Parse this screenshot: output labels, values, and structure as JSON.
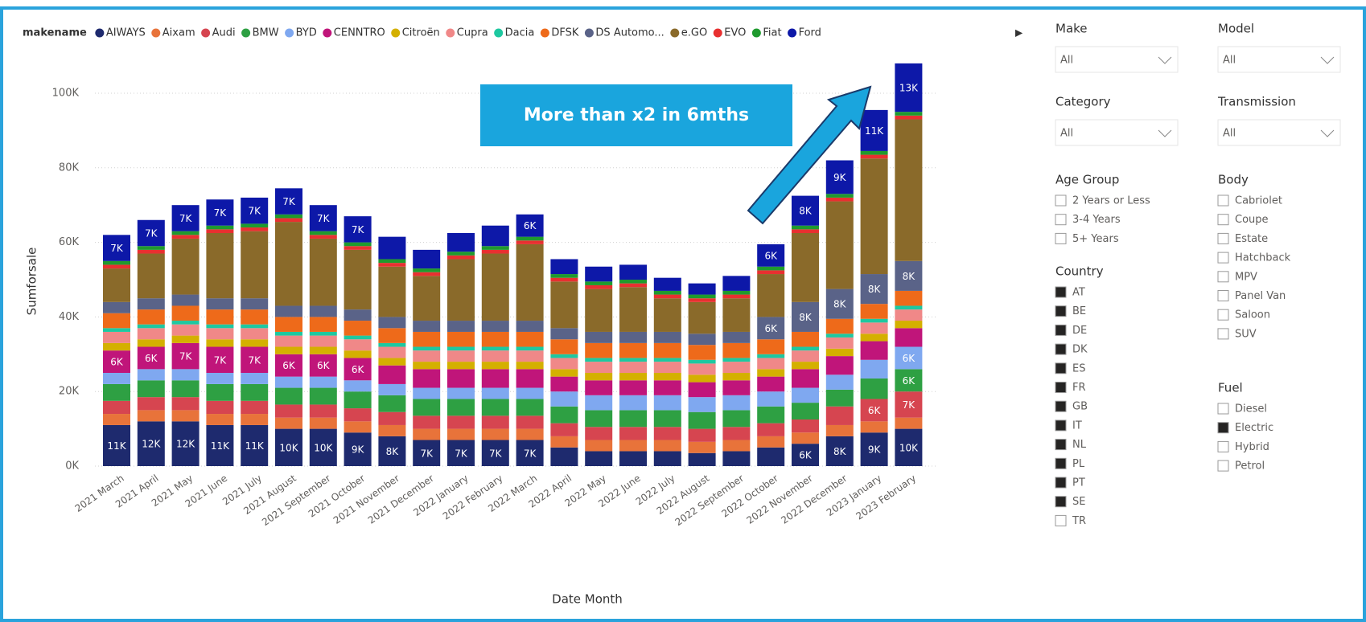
{
  "chart_data": {
    "type": "stacked_bar",
    "legend_title": "makename",
    "x_label": "Date Month",
    "y_label": "Sumforsale",
    "annotation": "More than x2 in 6mths",
    "categories": [
      "2021 March",
      "2021 April",
      "2021 May",
      "2021 June",
      "2021 July",
      "2021 August",
      "2021 September",
      "2021 October",
      "2021 November",
      "2021 December",
      "2022 January",
      "2022 February",
      "2022 March",
      "2022 April",
      "2022 May",
      "2022 June",
      "2022 July",
      "2022 August",
      "2022 September",
      "2022 October",
      "2022 November",
      "2022 December",
      "2023 January",
      "2023 February"
    ],
    "ylim": [
      0,
      110000
    ],
    "yticks": [
      {
        "value": 0,
        "label": "0K"
      },
      {
        "value": 20000,
        "label": "20K"
      },
      {
        "value": 40000,
        "label": "40K"
      },
      {
        "value": 60000,
        "label": "60K"
      },
      {
        "value": 80000,
        "label": "80K"
      },
      {
        "value": 100000,
        "label": "100K"
      }
    ],
    "grid": true,
    "series": [
      {
        "name": "AIWAYS",
        "color": "#1e2a6e",
        "values": [
          11000,
          12000,
          12000,
          11000,
          11000,
          10000,
          10000,
          9000,
          8000,
          7000,
          7000,
          7000,
          7000,
          5000,
          4000,
          4000,
          4000,
          3500,
          4000,
          5000,
          6000,
          8000,
          9000,
          10000
        ],
        "value_labels": [
          "11K",
          "12K",
          "12K",
          "11K",
          "11K",
          "10K",
          "10K",
          "9K",
          "8K",
          "7K",
          "7K",
          "7K",
          "7K",
          null,
          null,
          null,
          null,
          null,
          null,
          null,
          "6K",
          "8K",
          "9K",
          "10K"
        ]
      },
      {
        "name": "Aixam",
        "color": "#e8733a",
        "values": [
          3000,
          3000,
          3000,
          3000,
          3000,
          3000,
          3000,
          3000,
          3000,
          3000,
          3000,
          3000,
          3000,
          3000,
          3000,
          3000,
          3000,
          3000,
          3000,
          3000,
          3000,
          3000,
          3000,
          3000
        ]
      },
      {
        "name": "Audi",
        "color": "#d64550",
        "values": [
          3500,
          3500,
          3500,
          3500,
          3500,
          3500,
          3500,
          3500,
          3500,
          3500,
          3500,
          3500,
          3500,
          3500,
          3500,
          3500,
          3500,
          3500,
          3500,
          3500,
          3500,
          5000,
          6000,
          7000
        ],
        "value_labels": [
          null,
          null,
          null,
          null,
          null,
          null,
          null,
          null,
          null,
          null,
          null,
          null,
          null,
          null,
          null,
          null,
          null,
          null,
          null,
          null,
          null,
          null,
          "6K",
          "7K"
        ]
      },
      {
        "name": "BMW",
        "color": "#2ea043",
        "values": [
          4500,
          4500,
          4500,
          4500,
          4500,
          4500,
          4500,
          4500,
          4500,
          4500,
          4500,
          4500,
          4500,
          4500,
          4500,
          4500,
          4500,
          4500,
          4500,
          4500,
          4500,
          4500,
          5500,
          6000
        ],
        "value_labels": [
          null,
          null,
          null,
          null,
          null,
          null,
          null,
          null,
          null,
          null,
          null,
          null,
          null,
          null,
          null,
          null,
          null,
          null,
          null,
          null,
          null,
          null,
          null,
          "6K"
        ]
      },
      {
        "name": "BYD",
        "color": "#7fa8f0",
        "values": [
          3000,
          3000,
          3000,
          3000,
          3000,
          3000,
          3000,
          3000,
          3000,
          3000,
          3000,
          3000,
          3000,
          4000,
          4000,
          4000,
          4000,
          4000,
          4000,
          4000,
          4000,
          4000,
          5000,
          6000
        ],
        "value_labels": [
          null,
          null,
          null,
          null,
          null,
          null,
          null,
          null,
          null,
          null,
          null,
          null,
          null,
          null,
          null,
          null,
          null,
          null,
          null,
          null,
          null,
          null,
          null,
          "6K"
        ]
      },
      {
        "name": "CENNTRO",
        "color": "#c0157a",
        "values": [
          6000,
          6000,
          7000,
          7000,
          7000,
          6000,
          6000,
          6000,
          5000,
          5000,
          5000,
          5000,
          5000,
          4000,
          4000,
          4000,
          4000,
          4000,
          4000,
          4000,
          5000,
          5000,
          5000,
          5000
        ],
        "value_labels": [
          "6K",
          "6K",
          "7K",
          "7K",
          "7K",
          "6K",
          "6K",
          "6K",
          null,
          null,
          null,
          null,
          null,
          null,
          null,
          null,
          null,
          null,
          null,
          null,
          null,
          null,
          null,
          null
        ]
      },
      {
        "name": "Citroën",
        "color": "#d4b000",
        "values": [
          2000,
          2000,
          2000,
          2000,
          2000,
          2000,
          2000,
          2000,
          2000,
          2000,
          2000,
          2000,
          2000,
          2000,
          2000,
          2000,
          2000,
          2000,
          2000,
          2000,
          2000,
          2000,
          2000,
          2000
        ]
      },
      {
        "name": "Cupra",
        "color": "#f08888",
        "values": [
          3000,
          3000,
          3000,
          3000,
          3000,
          3000,
          3000,
          3000,
          3000,
          3000,
          3000,
          3000,
          3000,
          3000,
          3000,
          3000,
          3000,
          3000,
          3000,
          3000,
          3000,
          3000,
          3000,
          3000
        ]
      },
      {
        "name": "Dacia",
        "color": "#1ec8a0",
        "values": [
          1000,
          1000,
          1000,
          1000,
          1000,
          1000,
          1000,
          1000,
          1000,
          1000,
          1000,
          1000,
          1000,
          1000,
          1000,
          1000,
          1000,
          1000,
          1000,
          1000,
          1000,
          1000,
          1000,
          1000
        ]
      },
      {
        "name": "DFSK",
        "color": "#ee6a1a",
        "values": [
          4000,
          4000,
          4000,
          4000,
          4000,
          4000,
          4000,
          4000,
          4000,
          4000,
          4000,
          4000,
          4000,
          4000,
          4000,
          4000,
          4000,
          4000,
          4000,
          4000,
          4000,
          4000,
          4000,
          4000
        ]
      },
      {
        "name": "DS Automo...",
        "color": "#5a6388",
        "values": [
          3000,
          3000,
          3000,
          3000,
          3000,
          3000,
          3000,
          3000,
          3000,
          3000,
          3000,
          3000,
          3000,
          3000,
          3000,
          3000,
          3000,
          3000,
          3000,
          6000,
          8000,
          8000,
          8000,
          8000
        ],
        "value_labels": [
          null,
          null,
          null,
          null,
          null,
          null,
          null,
          null,
          null,
          null,
          null,
          null,
          null,
          null,
          null,
          null,
          null,
          null,
          null,
          "6K",
          "8K",
          "8K",
          "8K",
          "8K"
        ]
      },
      {
        "name": "e.GO",
        "color": "#8a6a2a",
        "values": [
          9000,
          12000,
          15000,
          17500,
          18000,
          22500,
          18000,
          16000,
          13500,
          12000,
          16500,
          18000,
          20500,
          12500,
          11500,
          12000,
          9000,
          8500,
          9000,
          11500,
          18500,
          23500,
          31000,
          38000
        ]
      },
      {
        "name": "EVO",
        "color": "#e83030",
        "values": [
          1000,
          1000,
          1000,
          1000,
          1000,
          1000,
          1000,
          1000,
          1000,
          1000,
          1000,
          1000,
          1000,
          1000,
          1000,
          1000,
          1000,
          1000,
          1000,
          1000,
          1000,
          1000,
          1000,
          1000
        ]
      },
      {
        "name": "Fiat",
        "color": "#1f9a2e",
        "values": [
          1000,
          1000,
          1000,
          1000,
          1000,
          1000,
          1000,
          1000,
          1000,
          1000,
          1000,
          1000,
          1000,
          1000,
          1000,
          1000,
          1000,
          1000,
          1000,
          1000,
          1000,
          1000,
          1000,
          1000
        ]
      },
      {
        "name": "Ford",
        "color": "#0d18a8",
        "values": [
          7000,
          7000,
          7000,
          7000,
          7000,
          7000,
          7000,
          7000,
          6000,
          5000,
          5000,
          5500,
          6000,
          4000,
          4000,
          4000,
          3500,
          3000,
          4000,
          6000,
          8000,
          9000,
          11000,
          13000
        ],
        "value_labels": [
          "7K",
          "7K",
          "7K",
          "7K",
          "7K",
          "7K",
          "7K",
          "7K",
          null,
          null,
          null,
          null,
          "6K",
          null,
          null,
          null,
          null,
          null,
          null,
          "6K",
          "8K",
          "9K",
          "11K",
          "13K"
        ]
      }
    ]
  },
  "slicers": {
    "dropdowns": [
      {
        "title": "Make",
        "value": "All"
      },
      {
        "title": "Model",
        "value": "All"
      },
      {
        "title": "Category",
        "value": "All"
      },
      {
        "title": "Transmission",
        "value": "All"
      }
    ],
    "lists": [
      {
        "title": "Age Group",
        "items": [
          {
            "label": "2 Years or Less",
            "checked": false
          },
          {
            "label": "3-4 Years",
            "checked": false
          },
          {
            "label": "5+ Years",
            "checked": false
          }
        ]
      },
      {
        "title": "Body",
        "items": [
          {
            "label": "Cabriolet",
            "checked": false
          },
          {
            "label": "Coupe",
            "checked": false
          },
          {
            "label": "Estate",
            "checked": false
          },
          {
            "label": "Hatchback",
            "checked": false
          },
          {
            "label": "MPV",
            "checked": false
          },
          {
            "label": "Panel Van",
            "checked": false
          },
          {
            "label": "Saloon",
            "checked": false
          },
          {
            "label": "SUV",
            "checked": false
          }
        ]
      },
      {
        "title": "Country",
        "items": [
          {
            "label": "AT",
            "checked": true
          },
          {
            "label": "BE",
            "checked": true
          },
          {
            "label": "DE",
            "checked": true
          },
          {
            "label": "DK",
            "checked": true
          },
          {
            "label": "ES",
            "checked": true
          },
          {
            "label": "FR",
            "checked": true
          },
          {
            "label": "GB",
            "checked": true
          },
          {
            "label": "IT",
            "checked": true
          },
          {
            "label": "NL",
            "checked": true
          },
          {
            "label": "PL",
            "checked": true
          },
          {
            "label": "PT",
            "checked": true
          },
          {
            "label": "SE",
            "checked": true
          },
          {
            "label": "TR",
            "checked": false
          }
        ]
      },
      {
        "title": "Fuel",
        "items": [
          {
            "label": "Diesel",
            "checked": false
          },
          {
            "label": "Electric",
            "checked": true
          },
          {
            "label": "Hybrid",
            "checked": false
          },
          {
            "label": "Petrol",
            "checked": false
          }
        ]
      }
    ]
  }
}
